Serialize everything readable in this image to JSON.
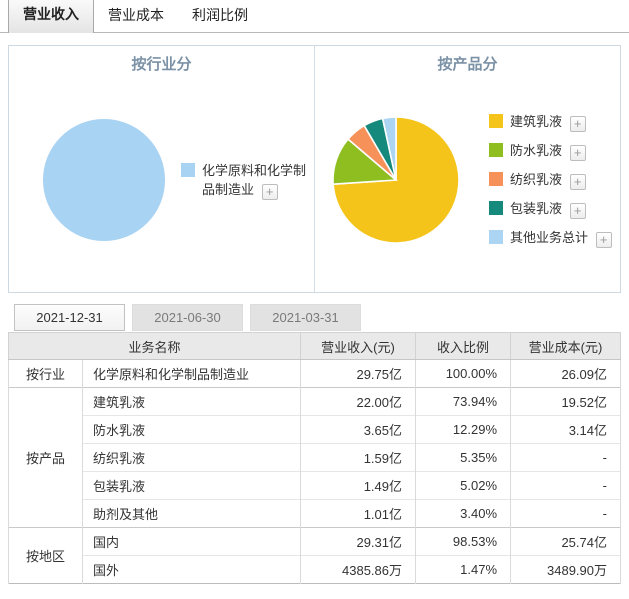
{
  "top_tabs": [
    "营业收入",
    "营业成本",
    "利润比例"
  ],
  "date_tabs": [
    "2021-12-31",
    "2021-06-30",
    "2021-03-31"
  ],
  "plus_button_label": "+",
  "charts": {
    "industry": {
      "title": "按行业分",
      "legend": [
        {
          "label": "化学原料和化学制品制造业",
          "color": "#a9d3f2"
        }
      ]
    },
    "product": {
      "title": "按产品分",
      "legend": [
        {
          "label": "建筑乳液",
          "color": "#f4c41b"
        },
        {
          "label": "防水乳液",
          "color": "#8ebe20"
        },
        {
          "label": "纺织乳液",
          "color": "#f6915a"
        },
        {
          "label": "包装乳液",
          "color": "#16897d"
        },
        {
          "label": "其他业务总计",
          "color": "#abd5f2"
        }
      ]
    }
  },
  "chart_data": [
    {
      "type": "pie",
      "title": "按行业分",
      "labels": [
        "化学原料和化学制品制造业"
      ],
      "values": [
        100.0
      ],
      "colors": [
        "#a9d3f2"
      ],
      "legend_position": "right"
    },
    {
      "type": "pie",
      "title": "按产品分",
      "labels": [
        "建筑乳液",
        "防水乳液",
        "纺织乳液",
        "包装乳液",
        "其他业务总计"
      ],
      "values": [
        73.94,
        12.29,
        5.35,
        5.02,
        3.4
      ],
      "colors": [
        "#f4c41b",
        "#8ebe20",
        "#f6915a",
        "#16897d",
        "#abd5f2"
      ],
      "legend_position": "right"
    }
  ],
  "table": {
    "headers": [
      "业务名称",
      "营业收入(元)",
      "收入比例",
      "营业成本(元)"
    ],
    "groups": [
      {
        "name": "按行业",
        "rows": [
          {
            "name": "化学原料和化学制品制造业",
            "revenue": "29.75亿",
            "ratio": "100.00%",
            "cost": "26.09亿"
          }
        ]
      },
      {
        "name": "按产品",
        "rows": [
          {
            "name": "建筑乳液",
            "revenue": "22.00亿",
            "ratio": "73.94%",
            "cost": "19.52亿"
          },
          {
            "name": "防水乳液",
            "revenue": "3.65亿",
            "ratio": "12.29%",
            "cost": "3.14亿"
          },
          {
            "name": "纺织乳液",
            "revenue": "1.59亿",
            "ratio": "5.35%",
            "cost": "-"
          },
          {
            "name": "包装乳液",
            "revenue": "1.49亿",
            "ratio": "5.02%",
            "cost": "-"
          },
          {
            "name": "助剂及其他",
            "revenue": "1.01亿",
            "ratio": "3.40%",
            "cost": "-"
          }
        ]
      },
      {
        "name": "按地区",
        "rows": [
          {
            "name": "国内",
            "revenue": "29.31亿",
            "ratio": "98.53%",
            "cost": "25.74亿"
          },
          {
            "name": "国外",
            "revenue": "4385.86万",
            "ratio": "1.47%",
            "cost": "3489.90万"
          }
        ]
      }
    ]
  }
}
